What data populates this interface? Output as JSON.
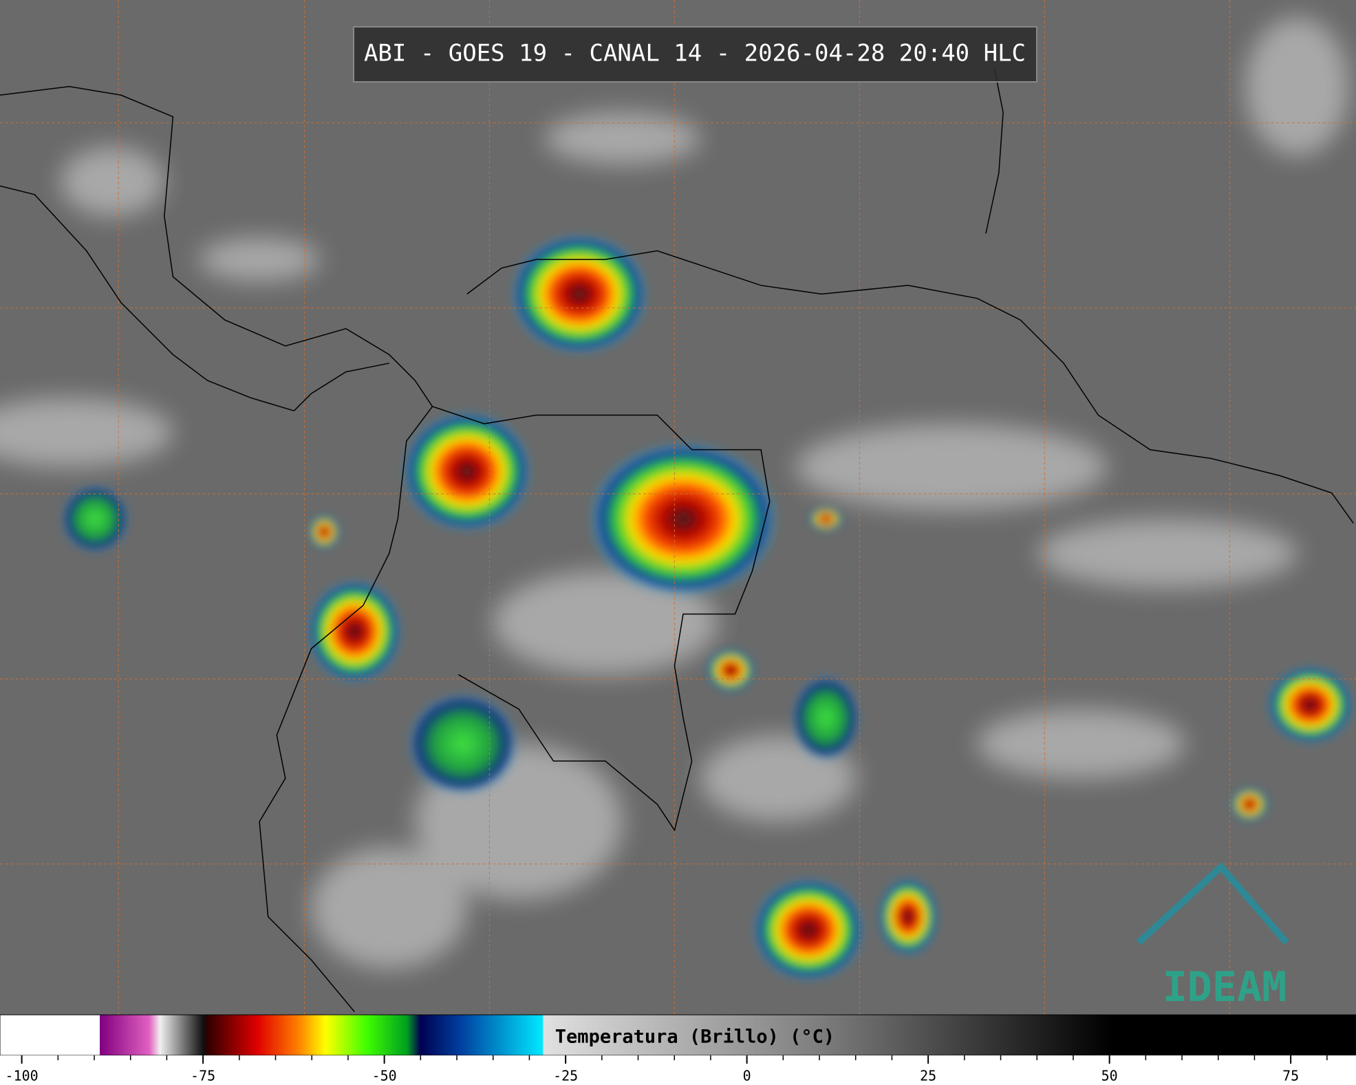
{
  "title": "ABI - GOES 19 - CANAL 14 - 2026-04-28 20:40 HLC",
  "logo": "IDEAM",
  "colorbar": {
    "label": "Temperatura (Brillo) (°C)",
    "xlim": [
      -103,
      84
    ],
    "xticks": [
      -100,
      -75,
      -50,
      -25,
      0,
      25,
      50,
      75
    ],
    "minor_xticks": [
      -95,
      -90,
      -85,
      -80,
      -70,
      -65,
      -60,
      -55,
      -45,
      -40,
      -35,
      -30,
      -20,
      -15,
      -10,
      -5,
      5,
      10,
      15,
      20,
      30,
      35,
      40,
      45,
      55,
      60,
      65,
      70,
      80
    ]
  }
}
